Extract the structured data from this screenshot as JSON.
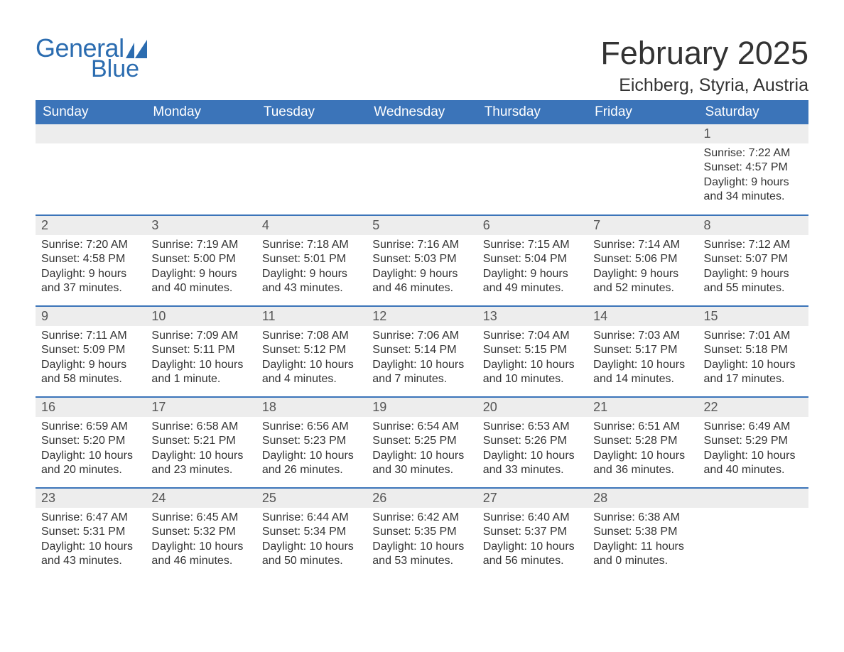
{
  "colors": {
    "header_bg": "#3b74b9",
    "header_text": "#ffffff",
    "daynum_bg": "#ededed",
    "daynum_text": "#555555",
    "body_text": "#333333",
    "rule": "#3b74b9",
    "logo": "#2b6cb0"
  },
  "typography": {
    "title_fontsize": 45,
    "location_fontsize": 25,
    "header_fontsize": 19,
    "daynum_fontsize": 18,
    "body_fontsize": 16
  },
  "logo": {
    "word1": "General",
    "word2": "Blue"
  },
  "title": "February 2025",
  "location": "Eichberg, Styria, Austria",
  "day_headers": [
    "Sunday",
    "Monday",
    "Tuesday",
    "Wednesday",
    "Thursday",
    "Friday",
    "Saturday"
  ],
  "weeks": [
    [
      null,
      null,
      null,
      null,
      null,
      null,
      {
        "n": "1",
        "sunrise": "Sunrise: 7:22 AM",
        "sunset": "Sunset: 4:57 PM",
        "daylight": "Daylight: 9 hours and 34 minutes."
      }
    ],
    [
      {
        "n": "2",
        "sunrise": "Sunrise: 7:20 AM",
        "sunset": "Sunset: 4:58 PM",
        "daylight": "Daylight: 9 hours and 37 minutes."
      },
      {
        "n": "3",
        "sunrise": "Sunrise: 7:19 AM",
        "sunset": "Sunset: 5:00 PM",
        "daylight": "Daylight: 9 hours and 40 minutes."
      },
      {
        "n": "4",
        "sunrise": "Sunrise: 7:18 AM",
        "sunset": "Sunset: 5:01 PM",
        "daylight": "Daylight: 9 hours and 43 minutes."
      },
      {
        "n": "5",
        "sunrise": "Sunrise: 7:16 AM",
        "sunset": "Sunset: 5:03 PM",
        "daylight": "Daylight: 9 hours and 46 minutes."
      },
      {
        "n": "6",
        "sunrise": "Sunrise: 7:15 AM",
        "sunset": "Sunset: 5:04 PM",
        "daylight": "Daylight: 9 hours and 49 minutes."
      },
      {
        "n": "7",
        "sunrise": "Sunrise: 7:14 AM",
        "sunset": "Sunset: 5:06 PM",
        "daylight": "Daylight: 9 hours and 52 minutes."
      },
      {
        "n": "8",
        "sunrise": "Sunrise: 7:12 AM",
        "sunset": "Sunset: 5:07 PM",
        "daylight": "Daylight: 9 hours and 55 minutes."
      }
    ],
    [
      {
        "n": "9",
        "sunrise": "Sunrise: 7:11 AM",
        "sunset": "Sunset: 5:09 PM",
        "daylight": "Daylight: 9 hours and 58 minutes."
      },
      {
        "n": "10",
        "sunrise": "Sunrise: 7:09 AM",
        "sunset": "Sunset: 5:11 PM",
        "daylight": "Daylight: 10 hours and 1 minute."
      },
      {
        "n": "11",
        "sunrise": "Sunrise: 7:08 AM",
        "sunset": "Sunset: 5:12 PM",
        "daylight": "Daylight: 10 hours and 4 minutes."
      },
      {
        "n": "12",
        "sunrise": "Sunrise: 7:06 AM",
        "sunset": "Sunset: 5:14 PM",
        "daylight": "Daylight: 10 hours and 7 minutes."
      },
      {
        "n": "13",
        "sunrise": "Sunrise: 7:04 AM",
        "sunset": "Sunset: 5:15 PM",
        "daylight": "Daylight: 10 hours and 10 minutes."
      },
      {
        "n": "14",
        "sunrise": "Sunrise: 7:03 AM",
        "sunset": "Sunset: 5:17 PM",
        "daylight": "Daylight: 10 hours and 14 minutes."
      },
      {
        "n": "15",
        "sunrise": "Sunrise: 7:01 AM",
        "sunset": "Sunset: 5:18 PM",
        "daylight": "Daylight: 10 hours and 17 minutes."
      }
    ],
    [
      {
        "n": "16",
        "sunrise": "Sunrise: 6:59 AM",
        "sunset": "Sunset: 5:20 PM",
        "daylight": "Daylight: 10 hours and 20 minutes."
      },
      {
        "n": "17",
        "sunrise": "Sunrise: 6:58 AM",
        "sunset": "Sunset: 5:21 PM",
        "daylight": "Daylight: 10 hours and 23 minutes."
      },
      {
        "n": "18",
        "sunrise": "Sunrise: 6:56 AM",
        "sunset": "Sunset: 5:23 PM",
        "daylight": "Daylight: 10 hours and 26 minutes."
      },
      {
        "n": "19",
        "sunrise": "Sunrise: 6:54 AM",
        "sunset": "Sunset: 5:25 PM",
        "daylight": "Daylight: 10 hours and 30 minutes."
      },
      {
        "n": "20",
        "sunrise": "Sunrise: 6:53 AM",
        "sunset": "Sunset: 5:26 PM",
        "daylight": "Daylight: 10 hours and 33 minutes."
      },
      {
        "n": "21",
        "sunrise": "Sunrise: 6:51 AM",
        "sunset": "Sunset: 5:28 PM",
        "daylight": "Daylight: 10 hours and 36 minutes."
      },
      {
        "n": "22",
        "sunrise": "Sunrise: 6:49 AM",
        "sunset": "Sunset: 5:29 PM",
        "daylight": "Daylight: 10 hours and 40 minutes."
      }
    ],
    [
      {
        "n": "23",
        "sunrise": "Sunrise: 6:47 AM",
        "sunset": "Sunset: 5:31 PM",
        "daylight": "Daylight: 10 hours and 43 minutes."
      },
      {
        "n": "24",
        "sunrise": "Sunrise: 6:45 AM",
        "sunset": "Sunset: 5:32 PM",
        "daylight": "Daylight: 10 hours and 46 minutes."
      },
      {
        "n": "25",
        "sunrise": "Sunrise: 6:44 AM",
        "sunset": "Sunset: 5:34 PM",
        "daylight": "Daylight: 10 hours and 50 minutes."
      },
      {
        "n": "26",
        "sunrise": "Sunrise: 6:42 AM",
        "sunset": "Sunset: 5:35 PM",
        "daylight": "Daylight: 10 hours and 53 minutes."
      },
      {
        "n": "27",
        "sunrise": "Sunrise: 6:40 AM",
        "sunset": "Sunset: 5:37 PM",
        "daylight": "Daylight: 10 hours and 56 minutes."
      },
      {
        "n": "28",
        "sunrise": "Sunrise: 6:38 AM",
        "sunset": "Sunset: 5:38 PM",
        "daylight": "Daylight: 11 hours and 0 minutes."
      },
      null
    ]
  ]
}
